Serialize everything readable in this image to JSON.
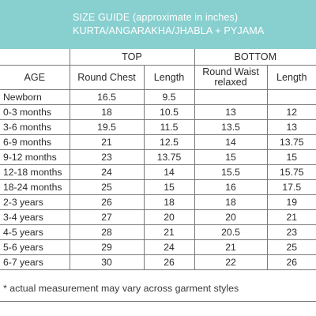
{
  "header": {
    "title_line1": "SIZE GUIDE (approximate in inches)",
    "title_line2": "KURTA/ANGARAKHA/JHABLA + PYJAMA",
    "background_color": "#88cfcf"
  },
  "table": {
    "groups": {
      "top": "TOP",
      "bottom": "BOTTOM"
    },
    "columns": {
      "age": "AGE",
      "round_chest": "Round Chest",
      "top_length": "Length",
      "round_waist": "Round Waist relaxed",
      "bottom_length": "Length"
    },
    "rows": [
      {
        "age": "Newborn",
        "chest": "16.5",
        "top_length": "9.5",
        "waist": "",
        "bottom_length": ""
      },
      {
        "age": "0-3 months",
        "chest": "18",
        "top_length": "10.5",
        "waist": "13",
        "bottom_length": "12"
      },
      {
        "age": "3-6 months",
        "chest": "19.5",
        "top_length": "11.5",
        "waist": "13.5",
        "bottom_length": "13"
      },
      {
        "age": "6-9 months",
        "chest": "21",
        "top_length": "12.5",
        "waist": "14",
        "bottom_length": "13.75"
      },
      {
        "age": "9-12 months",
        "chest": "23",
        "top_length": "13.75",
        "waist": "15",
        "bottom_length": "15"
      },
      {
        "age": "12-18 months",
        "chest": "24",
        "top_length": "14",
        "waist": "15.5",
        "bottom_length": "15.75"
      },
      {
        "age": "18-24 months",
        "chest": "25",
        "top_length": "15",
        "waist": "16",
        "bottom_length": "17.5"
      },
      {
        "age": "2-3 years",
        "chest": "26",
        "top_length": "18",
        "waist": "18",
        "bottom_length": "19"
      },
      {
        "age": "3-4 years",
        "chest": "27",
        "top_length": "20",
        "waist": "20",
        "bottom_length": "21"
      },
      {
        "age": "4-5 years",
        "chest": "28",
        "top_length": "21",
        "waist": "20.5",
        "bottom_length": "23"
      },
      {
        "age": "5-6 years",
        "chest": "29",
        "top_length": "24",
        "waist": "21",
        "bottom_length": "25"
      },
      {
        "age": "6-7 years",
        "chest": "30",
        "top_length": "26",
        "waist": "22",
        "bottom_length": "26"
      }
    ]
  },
  "footnote": "* actual measurement may vary across garment styles"
}
